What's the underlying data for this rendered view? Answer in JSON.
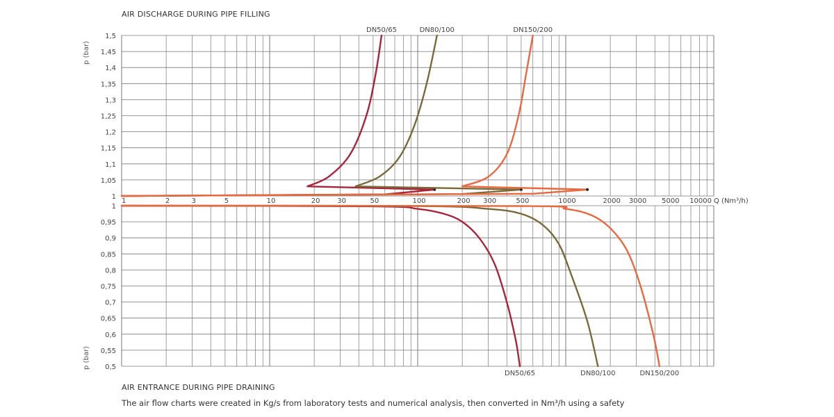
{
  "chart_data": [
    {
      "type": "line",
      "title": "AIR DISCHARGE DURING PIPE FILLING",
      "xlabel": "Q (Nm³/h)",
      "ylabel": "p (bar)",
      "xscale": "log",
      "xlim": [
        1,
        10000
      ],
      "ylim": [
        1,
        1.5
      ],
      "x_ticks": [
        1,
        2,
        3,
        5,
        10,
        20,
        30,
        50,
        100,
        200,
        300,
        500,
        1000,
        2000,
        3000,
        5000,
        10000
      ],
      "x_tick_labels": [
        "1",
        "2",
        "3",
        "5",
        "10",
        "20",
        "30",
        "50",
        "100",
        "200",
        "300",
        "500",
        "1000",
        "2000",
        "3000",
        "5000",
        "10000"
      ],
      "y_ticks": [
        1,
        1.05,
        1.1,
        1.15,
        1.2,
        1.25,
        1.3,
        1.35,
        1.4,
        1.45,
        1.5
      ],
      "y_tick_labels": [
        "1",
        "1,05",
        "1,1",
        "1,15",
        "1,2",
        "1,25",
        "1,3",
        "1,35",
        "1,4",
        "1,45",
        "1,5"
      ],
      "grid": true,
      "series": [
        {
          "name": "DN50/65",
          "color": "#a8243a",
          "points": [
            [
              1,
              1.0
            ],
            [
              60,
              1.005
            ],
            [
              130,
              1.02
            ],
            [
              18,
              1.03
            ],
            [
              25,
              1.06
            ],
            [
              35,
              1.13
            ],
            [
              45,
              1.25
            ],
            [
              52,
              1.38
            ],
            [
              57,
              1.5
            ]
          ],
          "marker": [
            130,
            1.02
          ]
        },
        {
          "name": "DN80/100",
          "color": "#7a6a3a",
          "points": [
            [
              1,
              1.0
            ],
            [
              200,
              1.006
            ],
            [
              500,
              1.02
            ],
            [
              38,
              1.03
            ],
            [
              55,
              1.06
            ],
            [
              75,
              1.12
            ],
            [
              95,
              1.22
            ],
            [
              115,
              1.35
            ],
            [
              135,
              1.5
            ]
          ],
          "marker": [
            500,
            1.02
          ]
        },
        {
          "name": "DN150/200",
          "color": "#e8693f",
          "points": [
            [
              1,
              1.0
            ],
            [
              600,
              1.007
            ],
            [
              1400,
              1.02
            ],
            [
              200,
              1.03
            ],
            [
              300,
              1.06
            ],
            [
              400,
              1.13
            ],
            [
              480,
              1.25
            ],
            [
              540,
              1.38
            ],
            [
              600,
              1.5
            ]
          ],
          "marker": [
            1400,
            1.02
          ]
        }
      ]
    },
    {
      "type": "line",
      "title": "AIR ENTRANCE DURING PIPE DRAINING",
      "xlabel": "Q (Nm³/h)",
      "ylabel": "p (bar)",
      "xscale": "log",
      "xlim": [
        1,
        10000
      ],
      "ylim": [
        0.5,
        1
      ],
      "y_ticks": [
        0.5,
        0.55,
        0.6,
        0.65,
        0.7,
        0.75,
        0.8,
        0.85,
        0.9,
        0.95,
        1
      ],
      "y_tick_labels": [
        "0,5",
        "0,55",
        "0,6",
        "0,65",
        "0,7",
        "0,75",
        "0,8",
        "0,85",
        "0,9",
        "0,95",
        "1"
      ],
      "grid": true,
      "series": [
        {
          "name": "DN50/65",
          "color": "#a8243a",
          "points": [
            [
              1,
              1.0
            ],
            [
              50,
              0.998
            ],
            [
              100,
              0.99
            ],
            [
              150,
              0.975
            ],
            [
              200,
              0.95
            ],
            [
              260,
              0.9
            ],
            [
              330,
              0.82
            ],
            [
              400,
              0.7
            ],
            [
              460,
              0.58
            ],
            [
              490,
              0.5
            ]
          ]
        },
        {
          "name": "DN80/100",
          "color": "#7a6a3a",
          "points": [
            [
              1,
              1.0
            ],
            [
              100,
              0.999
            ],
            [
              300,
              0.99
            ],
            [
              500,
              0.975
            ],
            [
              700,
              0.94
            ],
            [
              900,
              0.88
            ],
            [
              1100,
              0.78
            ],
            [
              1400,
              0.64
            ],
            [
              1650,
              0.5
            ]
          ]
        },
        {
          "name": "DN150/200",
          "color": "#e8693f",
          "points": [
            [
              1,
              1.0
            ],
            [
              500,
              0.999
            ],
            [
              1000,
              0.99
            ],
            [
              1500,
              0.97
            ],
            [
              2000,
              0.93
            ],
            [
              2600,
              0.86
            ],
            [
              3200,
              0.75
            ],
            [
              3900,
              0.6
            ],
            [
              4300,
              0.5
            ]
          ]
        }
      ]
    }
  ],
  "caption": "The air flow charts were created in Kg/s from laboratory tests and numerical analysis, then converted in Nm³/h using a safety"
}
